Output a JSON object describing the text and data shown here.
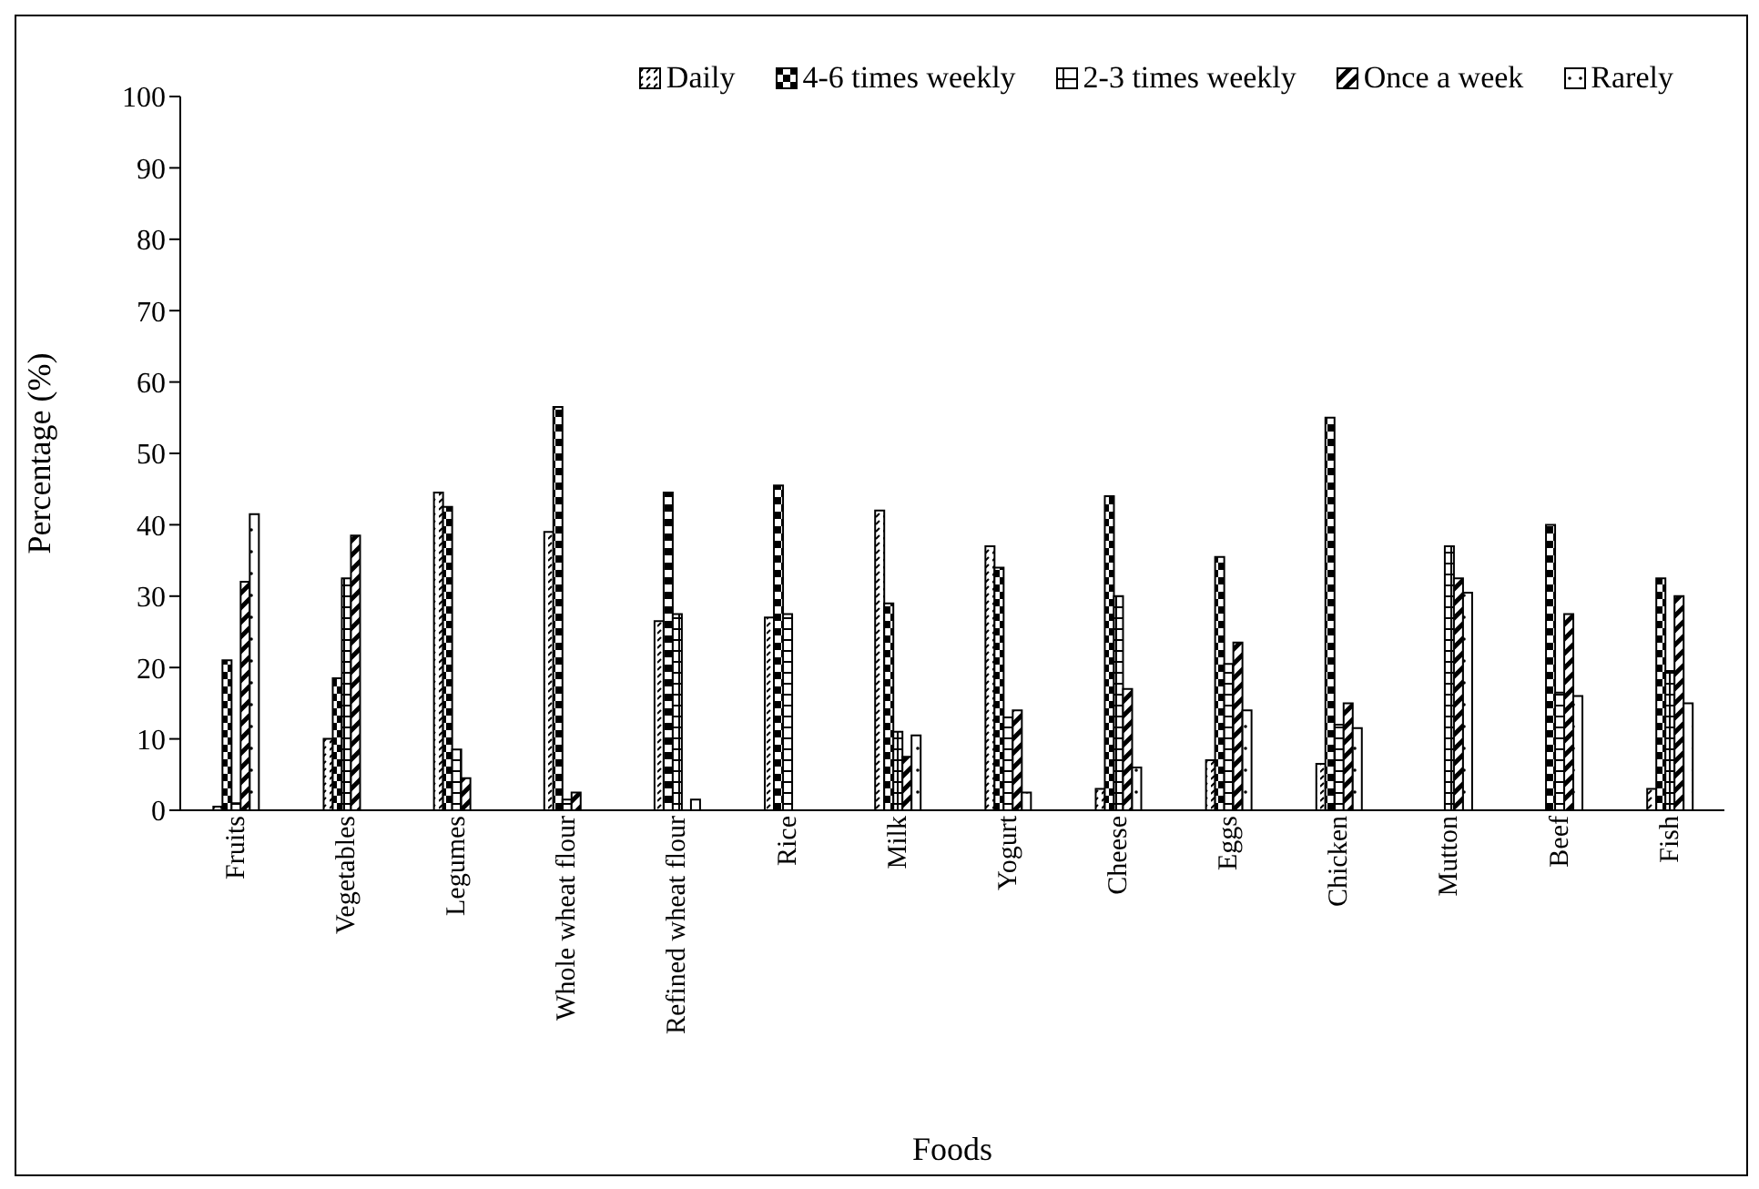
{
  "chart_data": {
    "type": "bar",
    "xlabel": "Foods",
    "ylabel": "Percentage (%)",
    "categories": [
      "Fruits",
      "Vegetables",
      "Legumes",
      "Whole wheat flour",
      "Refined wheat flour",
      "Rice",
      "Milk",
      "Yogurt",
      "Cheese",
      "Eggs",
      "Chicken",
      "Mutton",
      "Beef",
      "Fish"
    ],
    "series": [
      {
        "name": "Daily",
        "color": "#000000",
        "values": [
          0.5,
          10,
          44.5,
          39,
          26.5,
          27,
          42,
          37,
          3,
          7,
          6.5,
          0,
          0,
          3
        ]
      },
      {
        "name": "4-6 times weekly",
        "color": "#000000",
        "values": [
          21,
          18.5,
          42.5,
          56.5,
          44.5,
          45.5,
          29,
          34,
          44,
          35.5,
          55,
          0,
          40,
          32.5
        ]
      },
      {
        "name": "2-3 times weekly",
        "color": "#000000",
        "values": [
          1,
          32.5,
          8.5,
          1.5,
          27.5,
          27.5,
          11,
          13,
          30,
          20.5,
          12,
          37,
          16.5,
          19.5
        ]
      },
      {
        "name": "Once a week",
        "color": "#000000",
        "values": [
          32,
          38.5,
          4.5,
          2.5,
          0,
          0,
          7.5,
          14,
          17,
          23.5,
          15,
          32.5,
          27.5,
          30
        ]
      },
      {
        "name": "Rarely",
        "color": "#000000",
        "values": [
          41.5,
          0,
          0,
          0,
          1.5,
          0,
          10.5,
          2.5,
          6,
          14,
          11.5,
          30.5,
          16,
          15
        ]
      }
    ],
    "ylim": [
      0,
      100
    ],
    "yticks": [
      0,
      10,
      20,
      30,
      40,
      50,
      60,
      70,
      80,
      90,
      100
    ],
    "grid": false,
    "legend": "top right"
  }
}
